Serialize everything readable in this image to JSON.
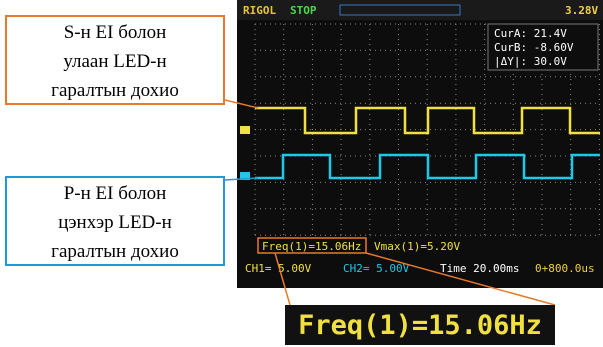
{
  "annotations": [
    {
      "lines": [
        "S-н EI болон",
        "улаан LED-н",
        "гаралтын дохио"
      ]
    },
    {
      "lines": [
        "P-н EI болон",
        "цэнхэр LED-н",
        "гаралтын дохио"
      ]
    }
  ],
  "scope": {
    "brand": "RIGOL",
    "status": "STOP",
    "trigger_level": "3.28V",
    "cursors": [
      "CurA: 21.4V",
      "CurB: -8.60V",
      "|ΔY|: 30.0V"
    ],
    "measurements": [
      "Freq(1)=15.06Hz",
      "Vmax(1)=5.20V"
    ],
    "channels": [
      "CH1= 5.00V",
      "CH2= 5.00V"
    ],
    "timebase": "Time 20.00ms",
    "offset": "0+800.0us"
  },
  "zoom_label": "Freq(1)=15.06Hz"
}
